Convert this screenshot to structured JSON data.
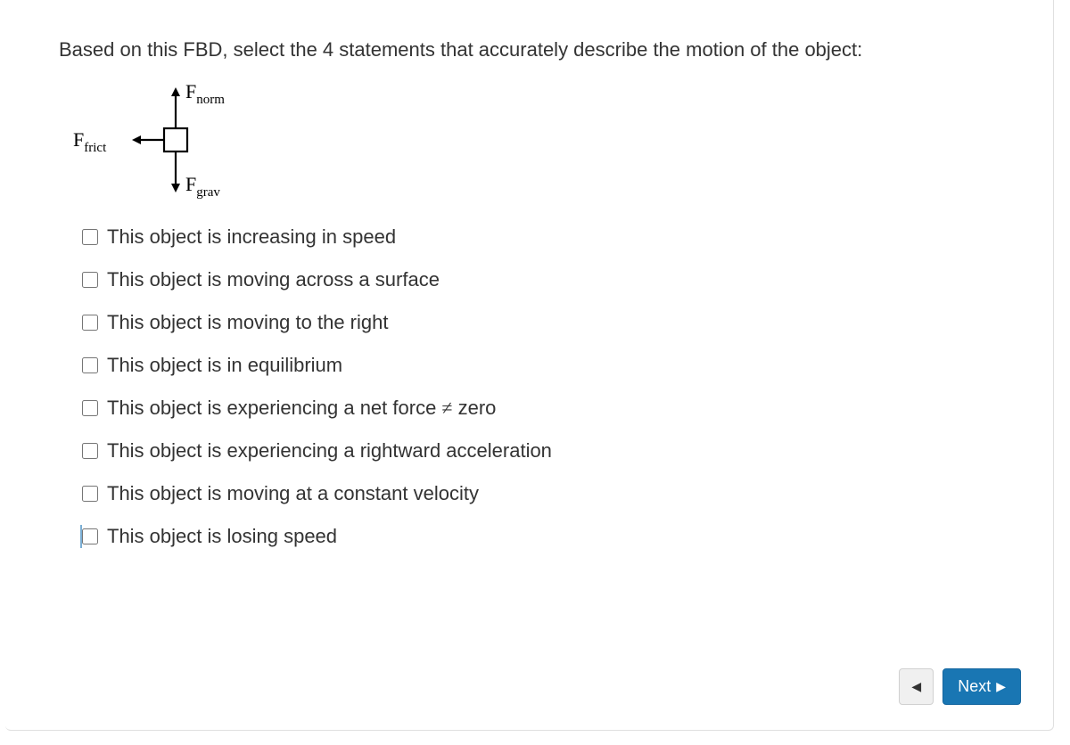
{
  "question": {
    "prompt": "Based on this FBD, select the 4 statements that accurately describe the motion of the object:"
  },
  "fbd": {
    "labels": {
      "norm_main": "F",
      "norm_sub": "norm",
      "frict_main": "F",
      "frict_sub": "frict",
      "grav_main": "F",
      "grav_sub": "grav"
    },
    "colors": {
      "stroke": "#000000",
      "text": "#000000"
    }
  },
  "options": [
    {
      "id": "opt-increasing-speed",
      "label": "This object is increasing in speed",
      "checked": false,
      "highlighted": false
    },
    {
      "id": "opt-moving-surface",
      "label": "This object is moving across a surface",
      "checked": false,
      "highlighted": false
    },
    {
      "id": "opt-moving-right",
      "label": "This object is moving to the right",
      "checked": false,
      "highlighted": false
    },
    {
      "id": "opt-equilibrium",
      "label": "This object is in equilibrium",
      "checked": false,
      "highlighted": false
    },
    {
      "id": "opt-net-force",
      "label_pre": "This object is experiencing a net force ",
      "label_sym": "≠",
      "label_post": " zero",
      "checked": false,
      "highlighted": false
    },
    {
      "id": "opt-rightward-accel",
      "label": "This object is experiencing a rightward acceleration",
      "checked": false,
      "highlighted": false
    },
    {
      "id": "opt-constant-velocity",
      "label": "This object is moving at a constant velocity",
      "checked": false,
      "highlighted": false
    },
    {
      "id": "opt-losing-speed",
      "label": "This object is losing speed",
      "checked": false,
      "highlighted": true
    }
  ],
  "nav": {
    "prev_glyph": "◀",
    "next_label": "Next",
    "next_glyph": "▶"
  },
  "colors": {
    "panel_border": "#e0e0e0",
    "text": "#333333",
    "btn_prev_bg": "#f0f0f0",
    "btn_prev_border": "#d0d0d0",
    "btn_next_bg": "#1976b3",
    "btn_next_border": "#1667a0",
    "btn_next_text": "#ffffff",
    "highlight_border": "#7aaed4"
  }
}
